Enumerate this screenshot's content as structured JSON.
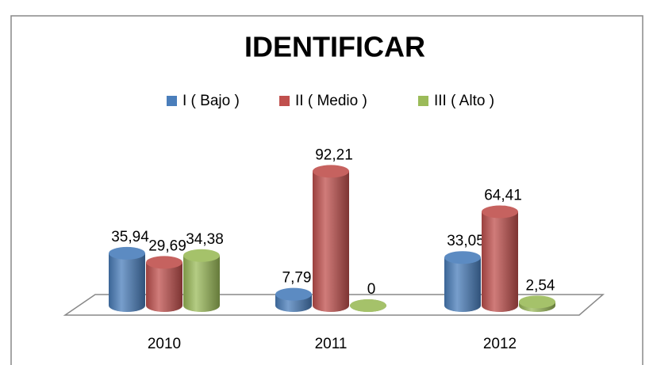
{
  "chart_data": {
    "type": "bar",
    "title": "IDENTIFICAR",
    "categories": [
      "2010",
      "2011",
      "2012"
    ],
    "series": [
      {
        "name": "I ( Bajo )",
        "color": "#4a7ebb",
        "values": [
          35.94,
          7.79,
          33.05
        ],
        "value_labels": [
          "35,94",
          "7,79",
          "33,05"
        ]
      },
      {
        "name": "II ( Medio )",
        "color": "#c0504d",
        "values": [
          29.69,
          92.21,
          64.41
        ],
        "value_labels": [
          "29,69",
          "92,21",
          "64,41"
        ]
      },
      {
        "name": "III ( Alto )",
        "color": "#9bbb59",
        "values": [
          34.38,
          0,
          2.54
        ],
        "value_labels": [
          "34,38",
          "0",
          "2,54"
        ]
      }
    ],
    "legend": "top"
  }
}
